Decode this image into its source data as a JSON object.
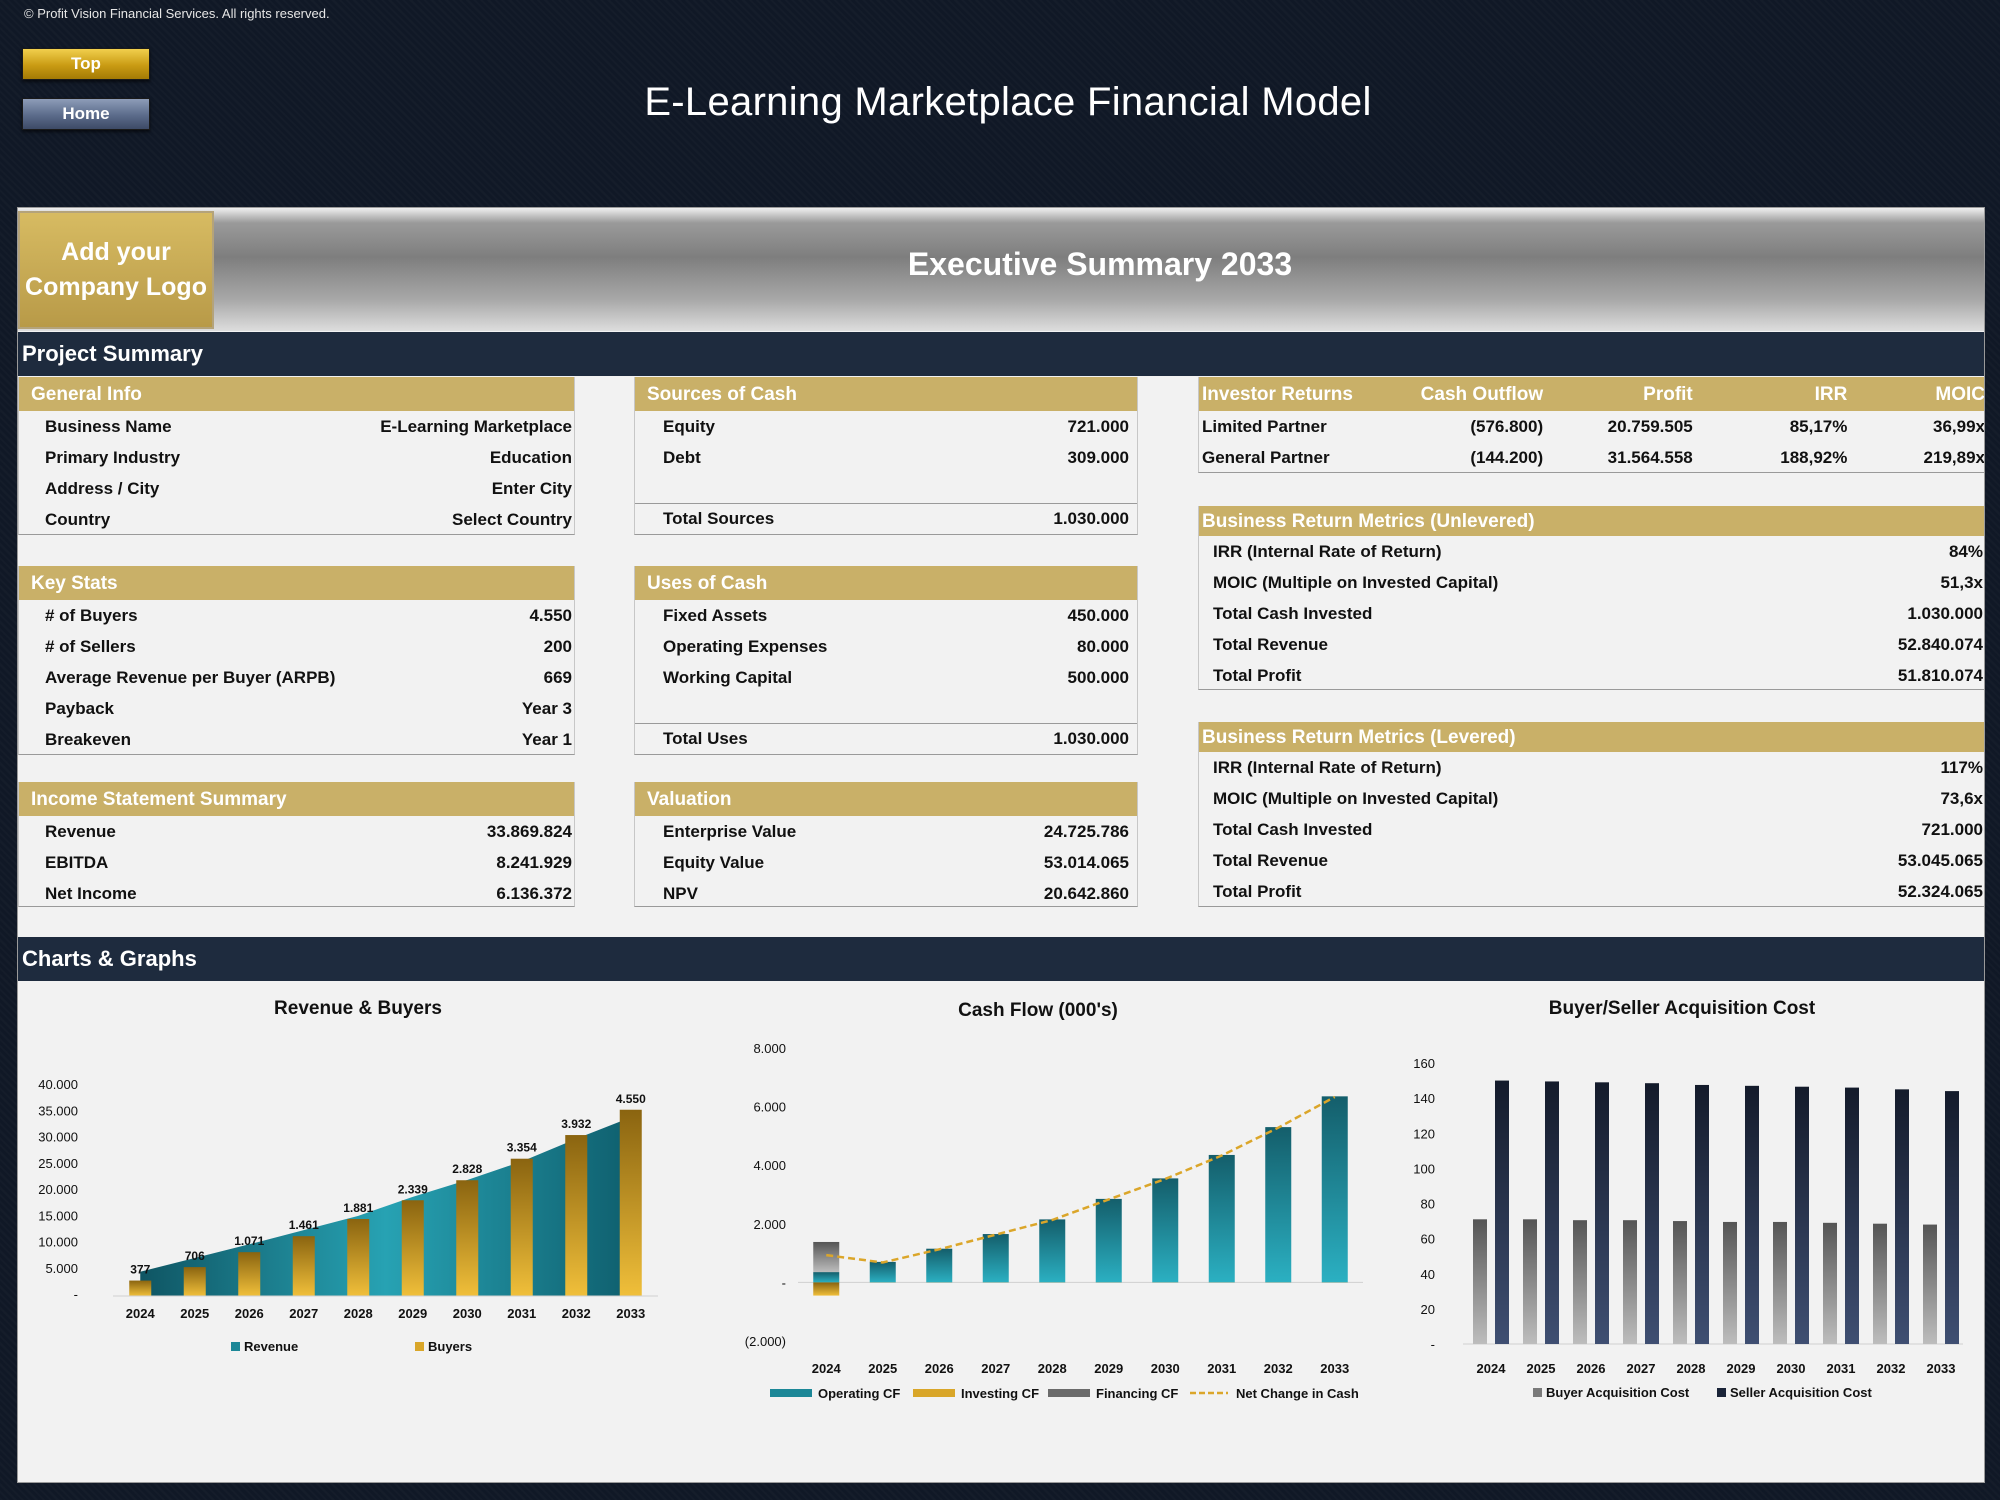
{
  "copyright": "© Profit Vision Financial Services. All rights reserved.",
  "nav": {
    "top_label": "Top",
    "home_label": "Home"
  },
  "title": "E-Learning Marketplace Financial Model",
  "banner": {
    "logo_text_1": "Add your",
    "logo_text_2": "Company Logo",
    "exec_title": "Executive Summary 2033"
  },
  "sections": {
    "project_summary": "Project Summary",
    "charts_graphs": "Charts & Graphs"
  },
  "general_info": {
    "header": "General Info",
    "rows": [
      {
        "label": "Business Name",
        "value": "E-Learning Marketplace"
      },
      {
        "label": "Primary Industry",
        "value": "Education"
      },
      {
        "label": "Address / City",
        "value": "Enter City"
      },
      {
        "label": "Country",
        "value": "Select Country"
      }
    ]
  },
  "key_stats": {
    "header": "Key Stats",
    "rows": [
      {
        "label": "# of Buyers",
        "value": "4.550"
      },
      {
        "label": "# of Sellers",
        "value": "200"
      },
      {
        "label": "Average Revenue per Buyer (ARPB)",
        "value": "669"
      },
      {
        "label": "Payback",
        "value": "Year 3"
      },
      {
        "label": "Breakeven",
        "value": "Year 1"
      }
    ]
  },
  "income_statement": {
    "header": "Income Statement Summary",
    "rows": [
      {
        "label": "Revenue",
        "value": "33.869.824"
      },
      {
        "label": "EBITDA",
        "value": "8.241.929"
      },
      {
        "label": "Net Income",
        "value": "6.136.372"
      }
    ]
  },
  "sources_of_cash": {
    "header": "Sources of Cash",
    "rows": [
      {
        "label": "Equity",
        "value": "721.000"
      },
      {
        "label": "Debt",
        "value": "309.000"
      }
    ],
    "total_label": "Total Sources",
    "total_value": "1.030.000"
  },
  "uses_of_cash": {
    "header": "Uses of Cash",
    "rows": [
      {
        "label": "Fixed Assets",
        "value": "450.000"
      },
      {
        "label": "Operating Expenses",
        "value": "80.000"
      },
      {
        "label": "Working Capital",
        "value": "500.000"
      }
    ],
    "total_label": "Total Uses",
    "total_value": "1.030.000"
  },
  "valuation": {
    "header": "Valuation",
    "rows": [
      {
        "label": "Enterprise Value",
        "value": "24.725.786"
      },
      {
        "label": "Equity Value",
        "value": "53.014.065"
      },
      {
        "label": "NPV",
        "value": "20.642.860"
      }
    ]
  },
  "investor_returns": {
    "headers": [
      "Investor Returns",
      "Cash Outflow",
      "Profit",
      "IRR",
      "MOIC"
    ],
    "rows": [
      [
        "Limited Partner",
        "(576.800)",
        "20.759.505",
        "85,17%",
        "36,99x"
      ],
      [
        "General Partner",
        "(144.200)",
        "31.564.558",
        "188,92%",
        "219,89x"
      ]
    ]
  },
  "unlevered": {
    "header": "Business Return Metrics (Unlevered)",
    "rows": [
      {
        "label": "IRR (Internal Rate of Return)",
        "value": "84%"
      },
      {
        "label": "MOIC (Multiple on Invested Capital)",
        "value": "51,3x"
      },
      {
        "label": "Total Cash Invested",
        "value": "1.030.000"
      },
      {
        "label": "Total Revenue",
        "value": "52.840.074"
      },
      {
        "label": "Total Profit",
        "value": "51.810.074"
      }
    ]
  },
  "levered": {
    "header": "Business Return Metrics (Levered)",
    "rows": [
      {
        "label": "IRR (Internal Rate of Return)",
        "value": "117%"
      },
      {
        "label": "MOIC (Multiple on Invested Capital)",
        "value": "73,6x"
      },
      {
        "label": "Total Cash Invested",
        "value": "721.000"
      },
      {
        "label": "Total Revenue",
        "value": "53.045.065"
      },
      {
        "label": "Total Profit",
        "value": "52.324.065"
      }
    ]
  },
  "colors": {
    "gold": "#c9b068",
    "navy": "#1e2b3e",
    "teal": "#1c8797",
    "buyers_gold": "#d9a629",
    "seller_navy": "#1a2438",
    "buyer_gray": "#7a7a7a"
  },
  "chart_data": [
    {
      "type": "bar",
      "title": "Revenue & Buyers",
      "categories": [
        "2024",
        "2025",
        "2026",
        "2027",
        "2028",
        "2029",
        "2030",
        "2031",
        "2032",
        "2033"
      ],
      "y_ticks": [
        "40.000",
        "35.000",
        "30.000",
        "25.000",
        "20.000",
        "15.000",
        "10.000",
        "5.000",
        "-"
      ],
      "ylim": [
        0,
        40000
      ],
      "series": [
        {
          "name": "Revenue",
          "kind": "area",
          "values": [
            4600,
            7200,
            9800,
            12500,
            15200,
            18800,
            22000,
            25500,
            29800,
            33870
          ]
        },
        {
          "name": "Buyers",
          "kind": "bar",
          "values": [
            377,
            706,
            1071,
            1461,
            1881,
            2339,
            2828,
            3354,
            3932,
            4550
          ],
          "labels": [
            "377",
            "706",
            "1.071",
            "1.461",
            "1.881",
            "2.339",
            "2.828",
            "3.354",
            "3.932",
            "4.550"
          ]
        }
      ],
      "legend": "bottom"
    },
    {
      "type": "bar",
      "title": "Cash Flow (000's)",
      "categories": [
        "2024",
        "2025",
        "2026",
        "2027",
        "2028",
        "2029",
        "2030",
        "2031",
        "2032",
        "2033"
      ],
      "y_ticks": [
        "8.000",
        "6.000",
        "4.000",
        "2.000",
        "-",
        "(2.000)"
      ],
      "ylim": [
        -2000,
        8000
      ],
      "series": [
        {
          "name": "Operating CF",
          "kind": "bar",
          "values": [
            350,
            700,
            1150,
            1650,
            2150,
            2850,
            3550,
            4350,
            5300,
            6350
          ]
        },
        {
          "name": "Investing CF",
          "kind": "bar",
          "values": [
            -450,
            -5,
            -5,
            -5,
            -5,
            -5,
            -5,
            -5,
            -5,
            -5
          ]
        },
        {
          "name": "Financing CF",
          "kind": "bar",
          "values": [
            1030,
            0,
            0,
            0,
            0,
            0,
            0,
            0,
            0,
            0
          ]
        },
        {
          "name": "Net Change in Cash",
          "kind": "line",
          "values": [
            930,
            680,
            1130,
            1630,
            2130,
            2830,
            3530,
            4330,
            5280,
            6330
          ]
        }
      ],
      "legend": "bottom"
    },
    {
      "type": "bar",
      "title": "Buyer/Seller Acquisition Cost",
      "categories": [
        "2024",
        "2025",
        "2026",
        "2027",
        "2028",
        "2029",
        "2030",
        "2031",
        "2032",
        "2033"
      ],
      "y_ticks": [
        "160",
        "140",
        "120",
        "100",
        "80",
        "60",
        "40",
        "20",
        "-"
      ],
      "ylim": [
        0,
        160
      ],
      "series": [
        {
          "name": "Buyer Acquisition Cost",
          "values": [
            71,
            71,
            70.5,
            70.5,
            70,
            69.5,
            69.5,
            69,
            68.5,
            68
          ]
        },
        {
          "name": "Seller Acquisition Cost",
          "values": [
            150,
            149.5,
            149,
            148.5,
            147.5,
            147,
            146.5,
            146,
            145,
            144
          ]
        }
      ],
      "legend": "bottom"
    }
  ]
}
